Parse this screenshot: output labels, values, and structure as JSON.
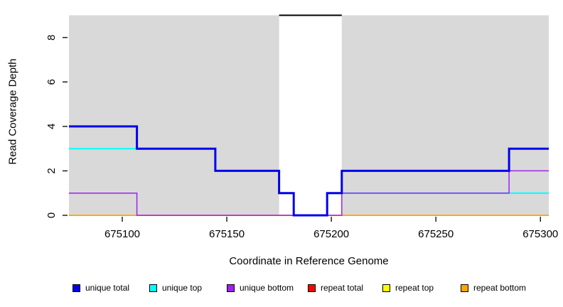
{
  "chart_data": {
    "type": "line",
    "subtype": "step-coverage-plot",
    "title": "",
    "xlabel": "Coordinate in Reference Genome",
    "ylabel": "Read Coverage Depth",
    "xlim": [
      675074.5,
      675304
    ],
    "ylim": [
      0,
      9
    ],
    "x_ticks": [
      675100,
      675150,
      675200,
      675250,
      675300
    ],
    "y_ticks": [
      0,
      2,
      4,
      6,
      8
    ],
    "grid": false,
    "background_shading": {
      "color": "#d9d9d9",
      "regions": [
        [
          675074.5,
          675175
        ],
        [
          675205,
          675304
        ]
      ]
    },
    "black_segment": {
      "color": "#000000",
      "y": 9,
      "x": [
        675175,
        675205
      ]
    },
    "series": [
      {
        "name": "repeat total",
        "color": "#ff0000",
        "width": 1.5,
        "points": [
          [
            675074.5,
            0
          ],
          [
            675304,
            0
          ]
        ]
      },
      {
        "name": "repeat top",
        "color": "#ffff00",
        "width": 1.5,
        "points": [
          [
            675074.5,
            0
          ],
          [
            675304,
            0
          ]
        ]
      },
      {
        "name": "repeat bottom",
        "color": "#ffa500",
        "width": 1.5,
        "points": [
          [
            675074.5,
            0
          ],
          [
            675304,
            0
          ]
        ]
      },
      {
        "name": "unique top",
        "color": "#00ffff",
        "width": 2,
        "points": [
          [
            675074.5,
            3
          ],
          [
            675144.5,
            3
          ],
          [
            675144.5,
            2
          ],
          [
            675175,
            2
          ],
          [
            675175,
            1
          ],
          [
            675182,
            1
          ],
          [
            675182,
            0
          ],
          [
            675198,
            0
          ],
          [
            675198,
            1
          ],
          [
            675304,
            1
          ]
        ]
      },
      {
        "name": "unique bottom",
        "color": "#a020f0",
        "width": 1.5,
        "points": [
          [
            675074.5,
            1
          ],
          [
            675107,
            1
          ],
          [
            675107,
            0
          ],
          [
            675205,
            0
          ],
          [
            675205,
            1
          ],
          [
            675285,
            1
          ],
          [
            675285,
            2
          ],
          [
            675304,
            2
          ]
        ]
      },
      {
        "name": "unique total",
        "color": "#0000ee",
        "width": 3,
        "points": [
          [
            675074.5,
            4
          ],
          [
            675107,
            4
          ],
          [
            675107,
            3
          ],
          [
            675144.5,
            3
          ],
          [
            675144.5,
            2
          ],
          [
            675175,
            2
          ],
          [
            675175,
            1
          ],
          [
            675182,
            1
          ],
          [
            675182,
            0
          ],
          [
            675198,
            0
          ],
          [
            675198,
            1
          ],
          [
            675205,
            1
          ],
          [
            675205,
            2
          ],
          [
            675285,
            2
          ],
          [
            675285,
            3
          ],
          [
            675304,
            3
          ]
        ]
      }
    ],
    "legend_position": "bottom"
  },
  "legend": {
    "items": [
      {
        "label": "unique total",
        "color": "#0000ee"
      },
      {
        "label": "unique top",
        "color": "#00ffff"
      },
      {
        "label": "unique bottom",
        "color": "#a020f0"
      },
      {
        "label": "repeat total",
        "color": "#ff0000"
      },
      {
        "label": "repeat top",
        "color": "#ffff00"
      },
      {
        "label": "repeat bottom",
        "color": "#ffa500"
      }
    ]
  },
  "colors": {
    "shading": "#d9d9d9",
    "axis": "#000000",
    "background": "#ffffff"
  }
}
